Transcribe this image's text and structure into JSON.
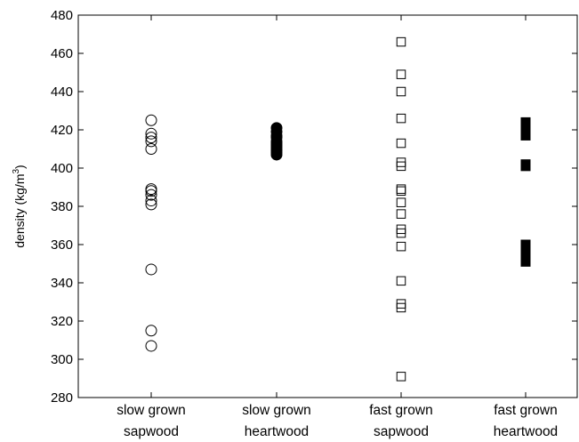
{
  "chart_data": {
    "type": "scatter",
    "ylabel": {
      "prefix": "density (kg/m",
      "superscript": "3",
      "suffix": ")"
    },
    "ylim": [
      280,
      480
    ],
    "yticks": [
      280,
      300,
      320,
      340,
      360,
      380,
      400,
      420,
      440,
      460,
      480
    ],
    "grid": false,
    "categories": [
      {
        "line1": "slow grown",
        "line2": "sapwood"
      },
      {
        "line1": "slow grown",
        "line2": "heartwood"
      },
      {
        "line1": "fast grown",
        "line2": "sapwood"
      },
      {
        "line1": "fast grown",
        "line2": "heartwood"
      }
    ],
    "series": [
      {
        "category_index": 0,
        "marker": "circle",
        "filled": false,
        "values": [
          425,
          418,
          416,
          414,
          410,
          389,
          388,
          386,
          383,
          381,
          347,
          315,
          307
        ]
      },
      {
        "category_index": 1,
        "marker": "circle",
        "filled": true,
        "values": [
          421,
          419,
          417,
          416,
          414,
          413,
          412,
          411,
          410,
          409,
          408,
          407
        ]
      },
      {
        "category_index": 2,
        "marker": "square",
        "filled": false,
        "values": [
          466,
          449,
          440,
          426,
          413,
          403,
          401,
          389,
          388,
          382,
          376,
          368,
          366,
          359,
          341,
          329,
          327,
          291
        ]
      },
      {
        "category_index": 3,
        "marker": "square",
        "filled": true,
        "values": [
          424,
          421,
          419,
          417,
          402,
          401,
          360,
          358,
          356,
          351
        ]
      }
    ],
    "colors": {
      "marker": "#000000",
      "axis": "#000000",
      "background": "#ffffff"
    }
  }
}
